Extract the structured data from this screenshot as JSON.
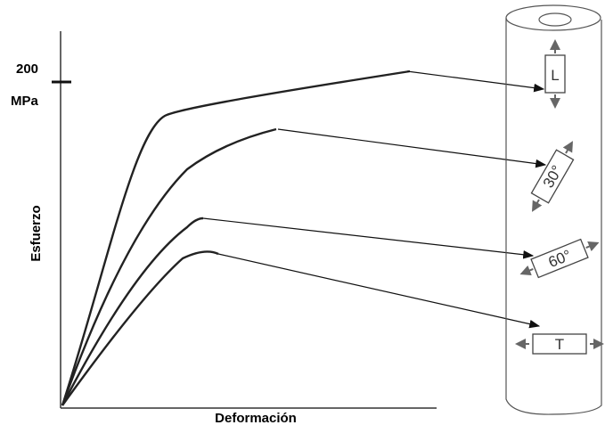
{
  "axis": {
    "tick_value": "200",
    "tick_unit": "MPa",
    "y_label": "Esfuerzo",
    "x_label": "Deformación"
  },
  "specimens": [
    {
      "label": "L"
    },
    {
      "label": "30°"
    },
    {
      "label": "60°"
    },
    {
      "label": "T"
    }
  ]
}
